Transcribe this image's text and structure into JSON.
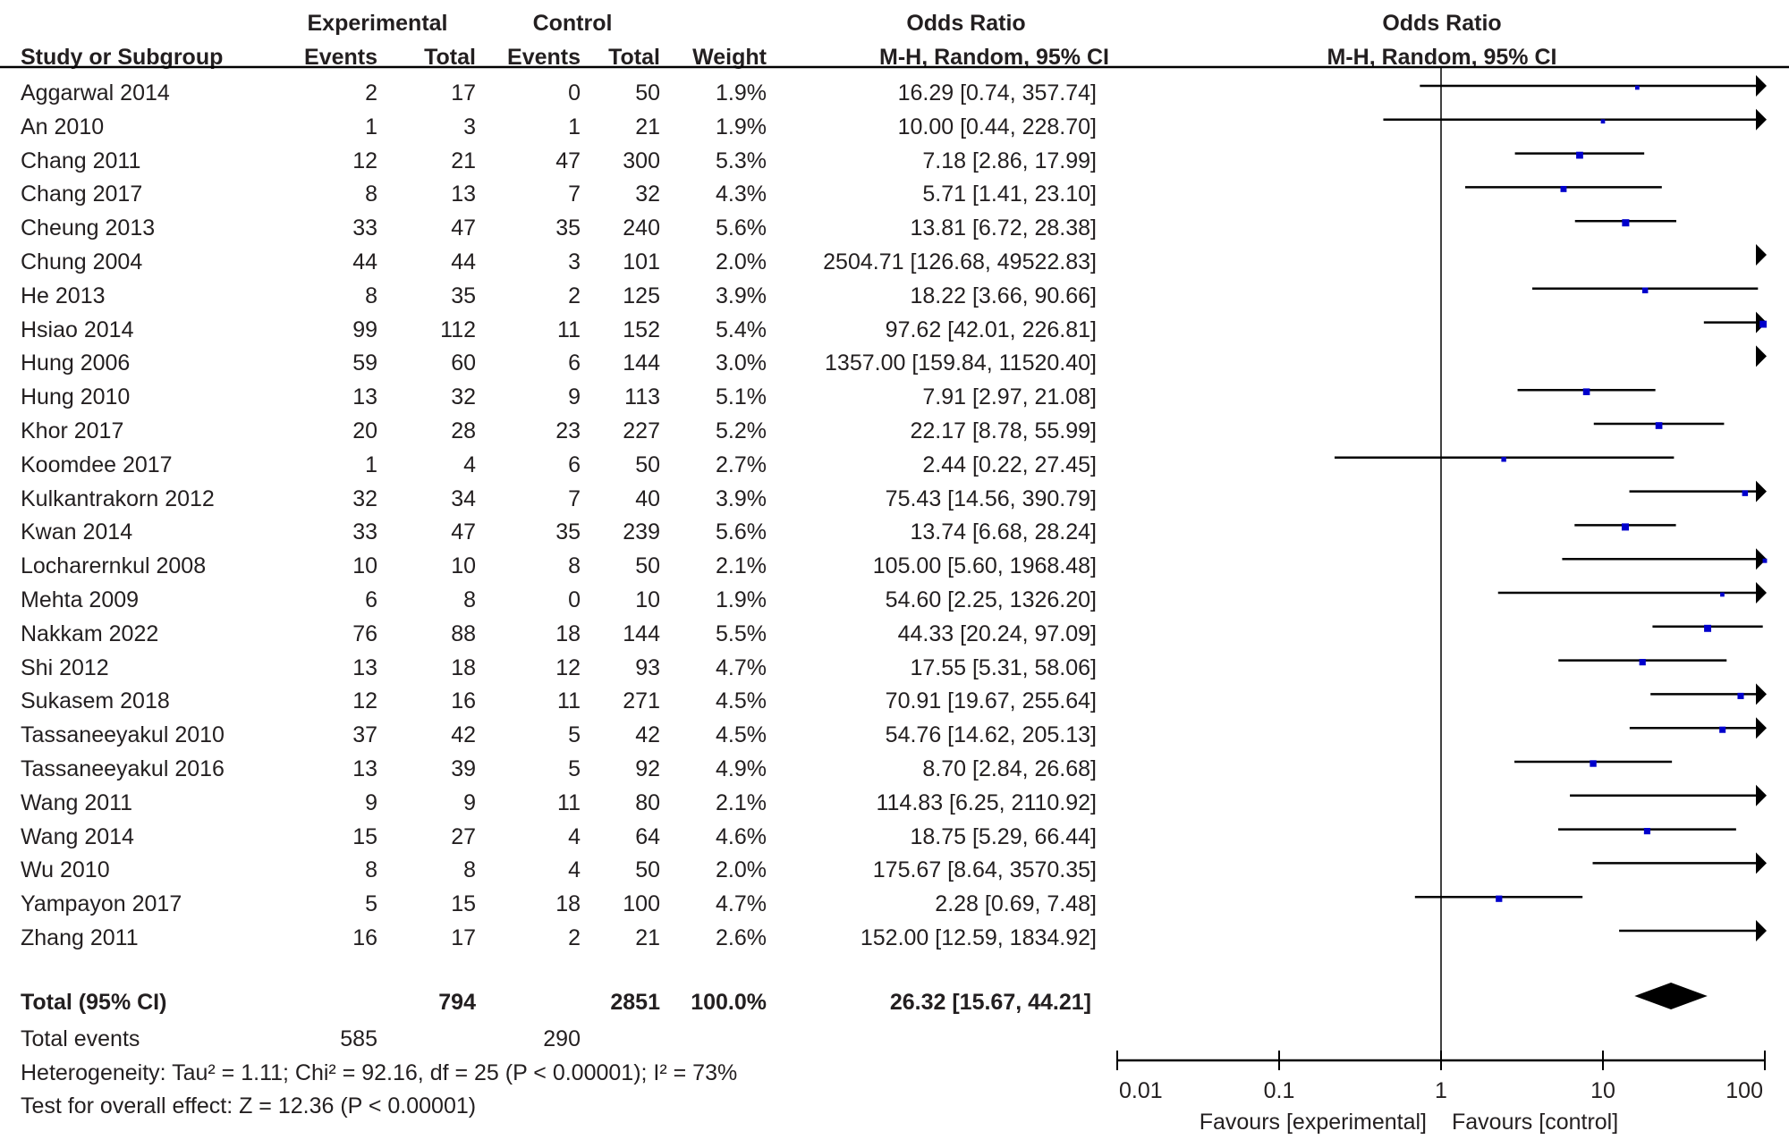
{
  "header": {
    "group_experimental": "Experimental",
    "group_control": "Control",
    "or_title": "Odds Ratio",
    "or_method": "M-H, Random, 95% CI",
    "plot_title": "Odds Ratio",
    "plot_method": "M-H, Random, 95% CI",
    "col_study": "Study or Subgroup",
    "col_exp_events": "Events",
    "col_exp_total": "Total",
    "col_ctrl_events": "Events",
    "col_ctrl_total": "Total",
    "col_weight": "Weight"
  },
  "total": {
    "label": "Total (95% CI)",
    "exp_total": "794",
    "ctrl_total": "2851",
    "weight": "100.0%",
    "or_text": "26.32 [15.67, 44.21]"
  },
  "total_events": {
    "label": "Total events",
    "exp": "585",
    "ctrl": "290"
  },
  "heterogeneity": "Heterogeneity: Tau² = 1.11; Chi² = 92.16, df = 25 (P < 0.00001); I² = 73%",
  "overall_effect": "Test for overall effect: Z = 12.36 (P < 0.00001)",
  "colors": {
    "square": "#0000cc",
    "line": "#000000",
    "text": "#231f20"
  },
  "chart_data": {
    "type": "forest",
    "x_scale": "log",
    "xlim": [
      0.01,
      100
    ],
    "x_ticks": [
      "0.01",
      "0.1",
      "1",
      "10",
      "100"
    ],
    "x_label_left": "Favours [experimental]",
    "x_label_right": "Favours [control]",
    "studies": [
      {
        "name": "Aggarwal 2014",
        "e_ev": "2",
        "e_tot": "17",
        "c_ev": "0",
        "c_tot": "50",
        "weight": "1.9%",
        "ci_text": "16.29 [0.74, 357.74]",
        "or": 16.29,
        "lo": 0.74,
        "hi": 357.74
      },
      {
        "name": "An 2010",
        "e_ev": "1",
        "e_tot": "3",
        "c_ev": "1",
        "c_tot": "21",
        "weight": "1.9%",
        "ci_text": "10.00 [0.44, 228.70]",
        "or": 10.0,
        "lo": 0.44,
        "hi": 228.7
      },
      {
        "name": "Chang 2011",
        "e_ev": "12",
        "e_tot": "21",
        "c_ev": "47",
        "c_tot": "300",
        "weight": "5.3%",
        "ci_text": "7.18 [2.86, 17.99]",
        "or": 7.18,
        "lo": 2.86,
        "hi": 17.99
      },
      {
        "name": "Chang 2017",
        "e_ev": "8",
        "e_tot": "13",
        "c_ev": "7",
        "c_tot": "32",
        "weight": "4.3%",
        "ci_text": "5.71 [1.41, 23.10]",
        "or": 5.71,
        "lo": 1.41,
        "hi": 23.1
      },
      {
        "name": "Cheung 2013",
        "e_ev": "33",
        "e_tot": "47",
        "c_ev": "35",
        "c_tot": "240",
        "weight": "5.6%",
        "ci_text": "13.81 [6.72, 28.38]",
        "or": 13.81,
        "lo": 6.72,
        "hi": 28.38
      },
      {
        "name": "Chung 2004",
        "e_ev": "44",
        "e_tot": "44",
        "c_ev": "3",
        "c_tot": "101",
        "weight": "2.0%",
        "ci_text": "2504.71 [126.68, 49522.83]",
        "or": 2504.71,
        "lo": 126.68,
        "hi": 49522.83
      },
      {
        "name": "He 2013",
        "e_ev": "8",
        "e_tot": "35",
        "c_ev": "2",
        "c_tot": "125",
        "weight": "3.9%",
        "ci_text": "18.22 [3.66, 90.66]",
        "or": 18.22,
        "lo": 3.66,
        "hi": 90.66
      },
      {
        "name": "Hsiao 2014",
        "e_ev": "99",
        "e_tot": "112",
        "c_ev": "11",
        "c_tot": "152",
        "weight": "5.4%",
        "ci_text": "97.62 [42.01, 226.81]",
        "or": 97.62,
        "lo": 42.01,
        "hi": 226.81
      },
      {
        "name": "Hung 2006",
        "e_ev": "59",
        "e_tot": "60",
        "c_ev": "6",
        "c_tot": "144",
        "weight": "3.0%",
        "ci_text": "1357.00 [159.84, 11520.40]",
        "or": 1357.0,
        "lo": 159.84,
        "hi": 11520.4
      },
      {
        "name": "Hung 2010",
        "e_ev": "13",
        "e_tot": "32",
        "c_ev": "9",
        "c_tot": "113",
        "weight": "5.1%",
        "ci_text": "7.91 [2.97, 21.08]",
        "or": 7.91,
        "lo": 2.97,
        "hi": 21.08
      },
      {
        "name": "Khor 2017",
        "e_ev": "20",
        "e_tot": "28",
        "c_ev": "23",
        "c_tot": "227",
        "weight": "5.2%",
        "ci_text": "22.17 [8.78, 55.99]",
        "or": 22.17,
        "lo": 8.78,
        "hi": 55.99
      },
      {
        "name": "Koomdee 2017",
        "e_ev": "1",
        "e_tot": "4",
        "c_ev": "6",
        "c_tot": "50",
        "weight": "2.7%",
        "ci_text": "2.44 [0.22, 27.45]",
        "or": 2.44,
        "lo": 0.22,
        "hi": 27.45
      },
      {
        "name": "Kulkantrakorn 2012",
        "e_ev": "32",
        "e_tot": "34",
        "c_ev": "7",
        "c_tot": "40",
        "weight": "3.9%",
        "ci_text": "75.43 [14.56, 390.79]",
        "or": 75.43,
        "lo": 14.56,
        "hi": 390.79
      },
      {
        "name": "Kwan 2014",
        "e_ev": "33",
        "e_tot": "47",
        "c_ev": "35",
        "c_tot": "239",
        "weight": "5.6%",
        "ci_text": "13.74 [6.68, 28.24]",
        "or": 13.74,
        "lo": 6.68,
        "hi": 28.24
      },
      {
        "name": "Locharernkul 2008",
        "e_ev": "10",
        "e_tot": "10",
        "c_ev": "8",
        "c_tot": "50",
        "weight": "2.1%",
        "ci_text": "105.00 [5.60, 1968.48]",
        "or": 105.0,
        "lo": 5.6,
        "hi": 1968.48
      },
      {
        "name": "Mehta 2009",
        "e_ev": "6",
        "e_tot": "8",
        "c_ev": "0",
        "c_tot": "10",
        "weight": "1.9%",
        "ci_text": "54.60 [2.25, 1326.20]",
        "or": 54.6,
        "lo": 2.25,
        "hi": 1326.2
      },
      {
        "name": "Nakkam 2022",
        "e_ev": "76",
        "e_tot": "88",
        "c_ev": "18",
        "c_tot": "144",
        "weight": "5.5%",
        "ci_text": "44.33 [20.24, 97.09]",
        "or": 44.33,
        "lo": 20.24,
        "hi": 97.09
      },
      {
        "name": "Shi 2012",
        "e_ev": "13",
        "e_tot": "18",
        "c_ev": "12",
        "c_tot": "93",
        "weight": "4.7%",
        "ci_text": "17.55 [5.31, 58.06]",
        "or": 17.55,
        "lo": 5.31,
        "hi": 58.06
      },
      {
        "name": "Sukasem 2018",
        "e_ev": "12",
        "e_tot": "16",
        "c_ev": "11",
        "c_tot": "271",
        "weight": "4.5%",
        "ci_text": "70.91 [19.67, 255.64]",
        "or": 70.91,
        "lo": 19.67,
        "hi": 255.64
      },
      {
        "name": "Tassaneeyakul 2010",
        "e_ev": "37",
        "e_tot": "42",
        "c_ev": "5",
        "c_tot": "42",
        "weight": "4.5%",
        "ci_text": "54.76 [14.62, 205.13]",
        "or": 54.76,
        "lo": 14.62,
        "hi": 205.13
      },
      {
        "name": "Tassaneeyakul 2016",
        "e_ev": "13",
        "e_tot": "39",
        "c_ev": "5",
        "c_tot": "92",
        "weight": "4.9%",
        "ci_text": "8.70 [2.84, 26.68]",
        "or": 8.7,
        "lo": 2.84,
        "hi": 26.68
      },
      {
        "name": "Wang 2011",
        "e_ev": "9",
        "e_tot": "9",
        "c_ev": "11",
        "c_tot": "80",
        "weight": "2.1%",
        "ci_text": "114.83 [6.25, 2110.92]",
        "or": 114.83,
        "lo": 6.25,
        "hi": 2110.92
      },
      {
        "name": "Wang 2014",
        "e_ev": "15",
        "e_tot": "27",
        "c_ev": "4",
        "c_tot": "64",
        "weight": "4.6%",
        "ci_text": "18.75 [5.29, 66.44]",
        "or": 18.75,
        "lo": 5.29,
        "hi": 66.44
      },
      {
        "name": "Wu 2010",
        "e_ev": "8",
        "e_tot": "8",
        "c_ev": "4",
        "c_tot": "50",
        "weight": "2.0%",
        "ci_text": "175.67 [8.64, 3570.35]",
        "or": 175.67,
        "lo": 8.64,
        "hi": 3570.35
      },
      {
        "name": "Yampayon 2017",
        "e_ev": "5",
        "e_tot": "15",
        "c_ev": "18",
        "c_tot": "100",
        "weight": "4.7%",
        "ci_text": "2.28 [0.69, 7.48]",
        "or": 2.28,
        "lo": 0.69,
        "hi": 7.48
      },
      {
        "name": "Zhang 2011",
        "e_ev": "16",
        "e_tot": "17",
        "c_ev": "2",
        "c_tot": "21",
        "weight": "2.6%",
        "ci_text": "152.00 [12.59, 1834.92]",
        "or": 152.0,
        "lo": 12.59,
        "hi": 1834.92
      }
    ],
    "pooled": {
      "or": 26.32,
      "lo": 15.67,
      "hi": 44.21
    }
  }
}
